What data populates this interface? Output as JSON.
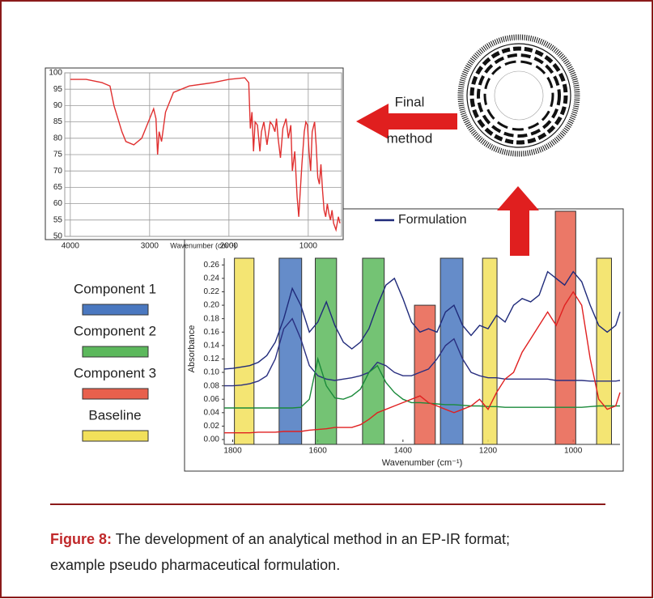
{
  "chart_data": [
    {
      "type": "line",
      "xlabel": "Wavenumber (cm⁻¹)",
      "x": [
        4000,
        3800,
        3600,
        3500,
        3450,
        3400,
        3350,
        3300,
        3200,
        3100,
        3000,
        2950,
        2920,
        2900,
        2880,
        2850,
        2800,
        2700,
        2500,
        2200,
        2000,
        1800,
        1750,
        1730,
        1710,
        1690,
        1670,
        1640,
        1610,
        1590,
        1560,
        1520,
        1480,
        1450,
        1420,
        1400,
        1380,
        1350,
        1320,
        1280,
        1250,
        1220,
        1200,
        1170,
        1140,
        1120,
        1100,
        1080,
        1050,
        1030,
        1010,
        990,
        970,
        950,
        920,
        900,
        880,
        860,
        840,
        820,
        800,
        780,
        760,
        740,
        720,
        700,
        680,
        650,
        620,
        600
      ],
      "series": [
        {
          "color": "#e03030",
          "values": [
            98,
            98,
            97,
            96,
            90,
            86,
            82,
            79,
            78,
            80,
            86,
            89,
            86,
            75,
            82,
            79,
            88,
            94,
            96,
            97,
            98,
            98.5,
            97,
            83,
            88,
            76,
            85,
            84,
            76,
            82,
            85,
            78,
            85,
            84,
            82,
            86,
            80,
            74,
            83,
            86,
            80,
            84,
            70,
            76,
            62,
            56,
            64,
            72,
            82,
            85,
            84,
            76,
            70,
            82,
            85,
            78,
            68,
            66,
            72,
            64,
            58,
            56,
            60,
            57,
            55,
            58,
            54,
            52,
            56,
            54
          ]
        }
      ],
      "xlim": [
        4070,
        580
      ],
      "ylim": [
        50,
        100
      ],
      "xticks": [
        4000,
        3000,
        2000,
        1000
      ],
      "yticks": [
        50,
        55,
        60,
        65,
        70,
        75,
        80,
        85,
        90,
        95,
        100
      ],
      "grid": true
    },
    {
      "type": "line",
      "xlabel": "Wavenumber (cm⁻¹)",
      "ylabel": "Absorbance",
      "x": [
        1820,
        1800,
        1780,
        1760,
        1740,
        1720,
        1700,
        1680,
        1660,
        1640,
        1620,
        1600,
        1580,
        1560,
        1540,
        1520,
        1500,
        1480,
        1460,
        1440,
        1420,
        1400,
        1380,
        1360,
        1340,
        1320,
        1300,
        1280,
        1260,
        1240,
        1220,
        1200,
        1180,
        1160,
        1140,
        1120,
        1100,
        1080,
        1060,
        1040,
        1020,
        1000,
        980,
        960,
        940,
        920,
        900,
        890
      ],
      "series": [
        {
          "name": "Formulation",
          "color": "#1f2a7a",
          "values": [
            0.105,
            0.106,
            0.108,
            0.11,
            0.115,
            0.125,
            0.145,
            0.18,
            0.225,
            0.2,
            0.16,
            0.175,
            0.205,
            0.17,
            0.145,
            0.135,
            0.145,
            0.165,
            0.2,
            0.23,
            0.24,
            0.21,
            0.175,
            0.16,
            0.165,
            0.16,
            0.19,
            0.2,
            0.17,
            0.155,
            0.17,
            0.165,
            0.185,
            0.175,
            0.2,
            0.21,
            0.205,
            0.215,
            0.25,
            0.24,
            0.23,
            0.25,
            0.235,
            0.2,
            0.17,
            0.16,
            0.17,
            0.19
          ]
        },
        {
          "color": "#2a2f80",
          "values": [
            0.08,
            0.08,
            0.081,
            0.083,
            0.087,
            0.095,
            0.12,
            0.165,
            0.18,
            0.15,
            0.11,
            0.095,
            0.09,
            0.088,
            0.09,
            0.092,
            0.095,
            0.1,
            0.115,
            0.11,
            0.1,
            0.095,
            0.095,
            0.1,
            0.105,
            0.12,
            0.14,
            0.15,
            0.12,
            0.1,
            0.095,
            0.092,
            0.092,
            0.09,
            0.09,
            0.09,
            0.09,
            0.09,
            0.09,
            0.088,
            0.088,
            0.088,
            0.088,
            0.087,
            0.087,
            0.087,
            0.087,
            0.088
          ]
        },
        {
          "color": "#1a8a3a",
          "values": [
            0.047,
            0.047,
            0.047,
            0.047,
            0.047,
            0.047,
            0.047,
            0.047,
            0.047,
            0.048,
            0.06,
            0.12,
            0.08,
            0.062,
            0.06,
            0.065,
            0.075,
            0.1,
            0.11,
            0.085,
            0.07,
            0.06,
            0.055,
            0.055,
            0.054,
            0.053,
            0.052,
            0.052,
            0.051,
            0.05,
            0.05,
            0.049,
            0.049,
            0.048,
            0.048,
            0.048,
            0.048,
            0.048,
            0.048,
            0.048,
            0.048,
            0.048,
            0.048,
            0.049,
            0.05,
            0.05,
            0.05,
            0.05
          ]
        },
        {
          "color": "#e02020",
          "values": [
            0.01,
            0.01,
            0.01,
            0.01,
            0.011,
            0.011,
            0.011,
            0.012,
            0.012,
            0.012,
            0.014,
            0.015,
            0.016,
            0.018,
            0.018,
            0.018,
            0.022,
            0.03,
            0.04,
            0.045,
            0.05,
            0.055,
            0.06,
            0.065,
            0.055,
            0.05,
            0.045,
            0.04,
            0.045,
            0.05,
            0.06,
            0.045,
            0.07,
            0.09,
            0.1,
            0.13,
            0.15,
            0.17,
            0.19,
            0.17,
            0.2,
            0.22,
            0.2,
            0.12,
            0.06,
            0.045,
            0.05,
            0.07
          ]
        }
      ],
      "components": [
        {
          "name": "Component 1",
          "color": "#4a78c0",
          "bands": [
            {
              "from": 1691,
              "to": 1638,
              "top": 0.27
            },
            {
              "from": 1312,
              "to": 1259,
              "top": 0.27
            }
          ]
        },
        {
          "name": "Component 2",
          "color": "#5cb85c",
          "bands": [
            {
              "from": 1606,
              "to": 1556,
              "top": 0.27
            },
            {
              "from": 1495,
              "to": 1444,
              "top": 0.27
            }
          ]
        },
        {
          "name": "Component 3",
          "color": "#e8604c",
          "bands": [
            {
              "from": 1373,
              "to": 1324,
              "top": 0.2
            },
            {
              "from": 1042,
              "to": 994,
              "top": 0.34
            }
          ]
        },
        {
          "name": "Baseline",
          "color": "#f2e05a",
          "bands": [
            {
              "from": 1796,
              "to": 1750,
              "top": 0.27
            },
            {
              "from": 1213,
              "to": 1179,
              "top": 0.27
            },
            {
              "from": 945,
              "to": 910,
              "top": 0.27
            }
          ]
        }
      ],
      "xlim": [
        1820,
        890
      ],
      "ylim": [
        0,
        0.27
      ],
      "xticks": [
        1800,
        1600,
        1400,
        1200,
        1000
      ],
      "yticks": [
        {
          "value": 0,
          "label": "0.00"
        },
        {
          "value": 0.02,
          "label": "0.02"
        },
        {
          "value": 0.04,
          "label": "0.04"
        },
        {
          "value": 0.06,
          "label": "0.06"
        },
        {
          "value": 0.08,
          "label": "0.08"
        },
        {
          "value": 0.1,
          "label": "0.10"
        },
        {
          "value": 0.12,
          "label": "0.12"
        },
        {
          "value": 0.14,
          "label": "0.14"
        },
        {
          "value": 0.16,
          "label": "0.16"
        },
        {
          "value": 0.18,
          "label": "0.18"
        },
        {
          "value": 0.2,
          "label": "0.20"
        },
        {
          "value": 0.22,
          "label": "0.22"
        },
        {
          "value": 0.24,
          "label": "0.24"
        },
        {
          "value": 0.26,
          "label": "0.26"
        }
      ],
      "grid": false
    }
  ],
  "figure": {
    "arrow_text": [
      "Final",
      "method"
    ]
  },
  "caption": {
    "label": "Figure 8:",
    "text": "The development of an analytical method in an EP-IR format; example pseudo pharmaceutical formulation."
  }
}
